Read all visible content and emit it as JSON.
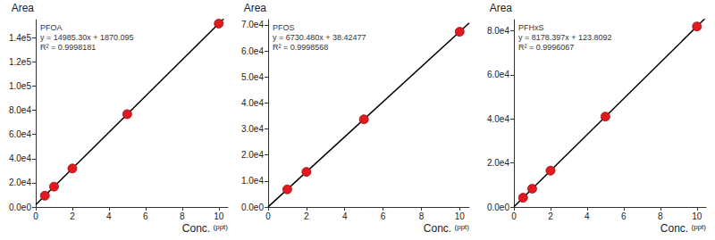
{
  "chart_data": [
    {
      "type": "scatter",
      "title": "PFOA",
      "annotations": [
        "y = 14985.30x + 1870.095",
        "R² = 0.9998181"
      ],
      "xlabel": "Conc.",
      "xlabel_unit": "(ppt)",
      "ylabel": "Area",
      "x": [
        0.5,
        1,
        2,
        5,
        10
      ],
      "values": [
        9363,
        16855,
        31841,
        76797,
        151723
      ],
      "color": "#e3191f",
      "marker": "circle",
      "fit_line": {
        "x": [
          0,
          10.5
        ],
        "values": [
          1870,
          159216
        ],
        "color": "#000000"
      },
      "xlim": [
        0,
        10.5
      ],
      "xticks": [
        0,
        2,
        4,
        6,
        8,
        10
      ],
      "ylim": [
        0,
        155000
      ],
      "yticks": [
        {
          "value": 0,
          "label": "0.0e0"
        },
        {
          "value": 20000,
          "label": "2.0e4"
        },
        {
          "value": 40000,
          "label": "4.0e4"
        },
        {
          "value": 60000,
          "label": "6.0e4"
        },
        {
          "value": 80000,
          "label": "8.0e4"
        },
        {
          "value": 100000,
          "label": "1.0e5"
        },
        {
          "value": 120000,
          "label": "1.2e5"
        },
        {
          "value": 140000,
          "label": "1.4e5"
        }
      ],
      "grid": false
    },
    {
      "type": "scatter",
      "title": "PFOS",
      "annotations": [
        "y = 6730.480x + 38.42477",
        "R² = 0.9998568"
      ],
      "xlabel": "Conc.",
      "xlabel_unit": "(ppt)",
      "ylabel": "Area",
      "x": [
        1,
        2,
        5,
        10
      ],
      "values": [
        6769,
        13499,
        33691,
        67343
      ],
      "color": "#e3191f",
      "marker": "circle",
      "fit_line": {
        "x": [
          0,
          10.5
        ],
        "values": [
          38,
          70708
        ],
        "color": "#000000"
      },
      "xlim": [
        0,
        10.5
      ],
      "xticks": [
        0,
        2,
        4,
        6,
        8,
        10
      ],
      "ylim": [
        0,
        72000
      ],
      "yticks": [
        {
          "value": 0,
          "label": "0.0e0"
        },
        {
          "value": 10000,
          "label": "1.0e4"
        },
        {
          "value": 20000,
          "label": "2.0e4"
        },
        {
          "value": 30000,
          "label": "3.0e4"
        },
        {
          "value": 40000,
          "label": "4.0e4"
        },
        {
          "value": 50000,
          "label": "5.0e4"
        },
        {
          "value": 60000,
          "label": "6.0e4"
        },
        {
          "value": 70000,
          "label": "7.0e4"
        }
      ],
      "grid": false
    },
    {
      "type": "scatter",
      "title": "PFHxS",
      "annotations": [
        "y = 8178.397x + 123.8092",
        "R² = 0.9996067"
      ],
      "xlabel": "Conc.",
      "xlabel_unit": "(ppt)",
      "ylabel": "Area",
      "x": [
        0.5,
        1,
        2,
        5,
        10
      ],
      "values": [
        4213,
        8302,
        16480,
        41015,
        81908
      ],
      "color": "#e3191f",
      "marker": "circle",
      "fit_line": {
        "x": [
          0,
          10.5
        ],
        "values": [
          124,
          85997
        ],
        "color": "#000000"
      },
      "xlim": [
        0,
        10.5
      ],
      "xticks": [
        0,
        2,
        4,
        6,
        8,
        10
      ],
      "ylim": [
        0,
        85000
      ],
      "yticks": [
        {
          "value": 0,
          "label": "0.0e0"
        },
        {
          "value": 20000,
          "label": "2.0e4"
        },
        {
          "value": 40000,
          "label": "4.0e4"
        },
        {
          "value": 60000,
          "label": "6.0e4"
        },
        {
          "value": 80000,
          "label": "8.0e4"
        }
      ],
      "grid": false
    }
  ]
}
